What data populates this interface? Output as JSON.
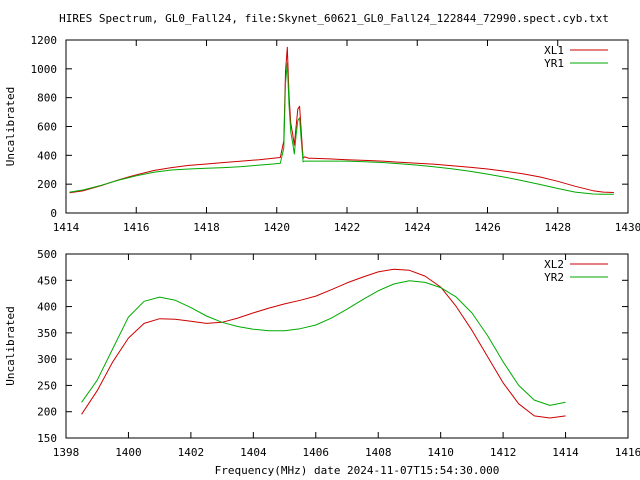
{
  "title": "HIRES Spectrum, GL0_Fall24, file:Skynet_60621_GL0_Fall24_122844_72990.spect.cyb.txt",
  "chart_data": [
    {
      "type": "line",
      "xlabel": "",
      "ylabel": "Uncalibrated",
      "xlim": [
        1414,
        1430
      ],
      "ylim": [
        0,
        1200
      ],
      "xticks": [
        1414,
        1416,
        1418,
        1420,
        1422,
        1424,
        1426,
        1428,
        1430
      ],
      "yticks": [
        0,
        200,
        400,
        600,
        800,
        1000,
        1200
      ],
      "grid": false,
      "legend_position": "top-right",
      "series": [
        {
          "name": "XL1",
          "color": "#cc0000",
          "x": [
            1414.1,
            1414.5,
            1415.0,
            1415.5,
            1416.0,
            1416.5,
            1417.0,
            1417.5,
            1418.0,
            1418.5,
            1419.0,
            1419.5,
            1419.9,
            1420.1,
            1420.2,
            1420.25,
            1420.3,
            1420.35,
            1420.4,
            1420.45,
            1420.5,
            1420.55,
            1420.6,
            1420.65,
            1420.7,
            1420.75,
            1420.8,
            1420.85,
            1420.9,
            1421.0,
            1421.5,
            1422.0,
            1422.5,
            1423.0,
            1423.5,
            1424.0,
            1424.5,
            1425.0,
            1425.5,
            1426.0,
            1426.5,
            1427.0,
            1427.5,
            1428.0,
            1428.5,
            1429.0,
            1429.3,
            1429.6
          ],
          "y": [
            140,
            155,
            190,
            230,
            265,
            295,
            315,
            330,
            340,
            350,
            360,
            370,
            380,
            385,
            500,
            980,
            1150,
            820,
            620,
            550,
            470,
            600,
            720,
            740,
            560,
            380,
            390,
            385,
            380,
            380,
            375,
            370,
            365,
            360,
            352,
            345,
            338,
            328,
            318,
            305,
            290,
            272,
            250,
            220,
            185,
            155,
            145,
            142
          ]
        },
        {
          "name": "YR1",
          "color": "#00aa00",
          "x": [
            1414.1,
            1414.5,
            1415.0,
            1415.5,
            1416.0,
            1416.5,
            1417.0,
            1417.5,
            1418.0,
            1418.5,
            1419.0,
            1419.5,
            1419.9,
            1420.1,
            1420.2,
            1420.25,
            1420.3,
            1420.35,
            1420.4,
            1420.45,
            1420.5,
            1420.55,
            1420.6,
            1420.65,
            1420.7,
            1420.75,
            1420.8,
            1420.85,
            1420.9,
            1421.0,
            1421.5,
            1422.0,
            1422.5,
            1423.0,
            1423.5,
            1424.0,
            1424.5,
            1425.0,
            1425.5,
            1426.0,
            1426.5,
            1427.0,
            1427.5,
            1428.0,
            1428.5,
            1429.0,
            1429.3,
            1429.6
          ],
          "y": [
            145,
            160,
            192,
            228,
            258,
            283,
            298,
            305,
            310,
            315,
            322,
            332,
            340,
            345,
            450,
            900,
            1040,
            750,
            560,
            490,
            410,
            540,
            640,
            660,
            500,
            355,
            360,
            360,
            360,
            360,
            360,
            360,
            355,
            350,
            342,
            332,
            320,
            306,
            290,
            270,
            248,
            224,
            198,
            170,
            145,
            132,
            130,
            130
          ]
        }
      ]
    },
    {
      "type": "line",
      "xlabel": "Frequency(MHz) date 2024-11-07T15:54:30.000",
      "ylabel": "Uncalibrated",
      "xlim": [
        1398,
        1416
      ],
      "ylim": [
        150,
        500
      ],
      "xticks": [
        1398,
        1400,
        1402,
        1404,
        1406,
        1408,
        1410,
        1412,
        1414,
        1416
      ],
      "yticks": [
        150,
        200,
        250,
        300,
        350,
        400,
        450,
        500
      ],
      "grid": false,
      "legend_position": "top-right",
      "series": [
        {
          "name": "XL2",
          "color": "#cc0000",
          "x": [
            1398.5,
            1399.0,
            1399.5,
            1400.0,
            1400.5,
            1401.0,
            1401.5,
            1402.0,
            1402.5,
            1403.0,
            1403.5,
            1404.0,
            1404.5,
            1405.0,
            1405.5,
            1406.0,
            1406.5,
            1407.0,
            1407.5,
            1408.0,
            1408.5,
            1409.0,
            1409.5,
            1410.0,
            1410.5,
            1411.0,
            1411.5,
            1412.0,
            1412.5,
            1413.0,
            1413.5,
            1414.0
          ],
          "y": [
            195,
            240,
            295,
            340,
            368,
            377,
            376,
            372,
            368,
            370,
            378,
            388,
            397,
            405,
            412,
            420,
            432,
            445,
            456,
            466,
            471,
            469,
            458,
            437,
            400,
            355,
            305,
            255,
            215,
            192,
            188,
            192
          ]
        },
        {
          "name": "YR2",
          "color": "#00aa00",
          "x": [
            1398.5,
            1399.0,
            1399.5,
            1400.0,
            1400.5,
            1401.0,
            1401.5,
            1402.0,
            1402.5,
            1403.0,
            1403.5,
            1404.0,
            1404.5,
            1405.0,
            1405.5,
            1406.0,
            1406.5,
            1407.0,
            1407.5,
            1408.0,
            1408.5,
            1409.0,
            1409.5,
            1410.0,
            1410.5,
            1411.0,
            1411.5,
            1412.0,
            1412.5,
            1413.0,
            1413.5,
            1414.0
          ],
          "y": [
            218,
            260,
            320,
            380,
            410,
            418,
            412,
            398,
            382,
            370,
            362,
            357,
            354,
            354,
            358,
            365,
            378,
            395,
            413,
            430,
            443,
            449,
            446,
            436,
            418,
            388,
            345,
            295,
            250,
            222,
            212,
            218
          ]
        }
      ]
    }
  ]
}
